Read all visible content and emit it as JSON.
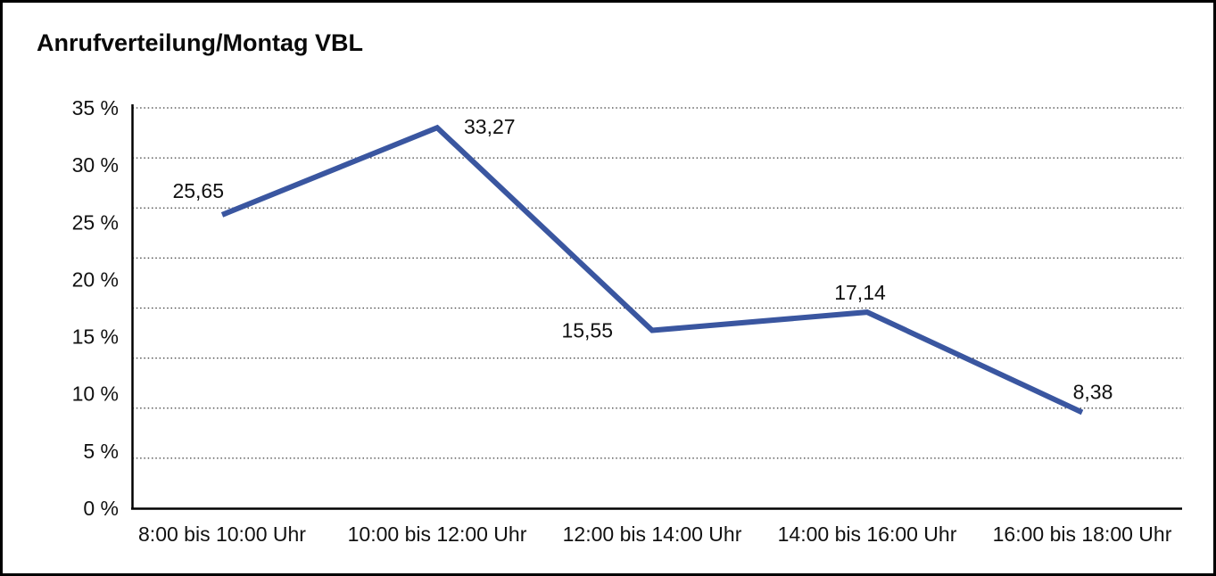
{
  "page": {
    "title": "Anrufverteilung/Montag VBL"
  },
  "chart_data": {
    "type": "line",
    "title": "Anrufverteilung/Montag VBL",
    "categories": [
      "8:00 bis 10:00 Uhr",
      "10:00 bis 12:00 Uhr",
      "12:00 bis 14:00 Uhr",
      "14:00 bis 16:00 Uhr",
      "16:00 bis 18:00 Uhr"
    ],
    "values": [
      25.65,
      33.27,
      15.55,
      17.14,
      8.38
    ],
    "data_labels": [
      "25,65",
      "33,27",
      "15,55",
      "17,14",
      "8,38"
    ],
    "unit": "%",
    "y_ticks": [
      "35 %",
      "30 %",
      "25 %",
      "20 %",
      "15 %",
      "10 %",
      "5 %",
      "0 %"
    ],
    "y_tick_values": [
      35,
      30,
      25,
      20,
      15,
      10,
      5,
      0
    ],
    "ylim": [
      0,
      35
    ],
    "xlabel": "",
    "ylabel": "",
    "legend": "none",
    "grid": "dotted-horizontal",
    "colors": {
      "line": "#3a56a0",
      "axis": "#000000",
      "grid_dots": "#3c3c3c",
      "text": "#111111",
      "background": "#ffffff",
      "border": "#000000"
    }
  }
}
